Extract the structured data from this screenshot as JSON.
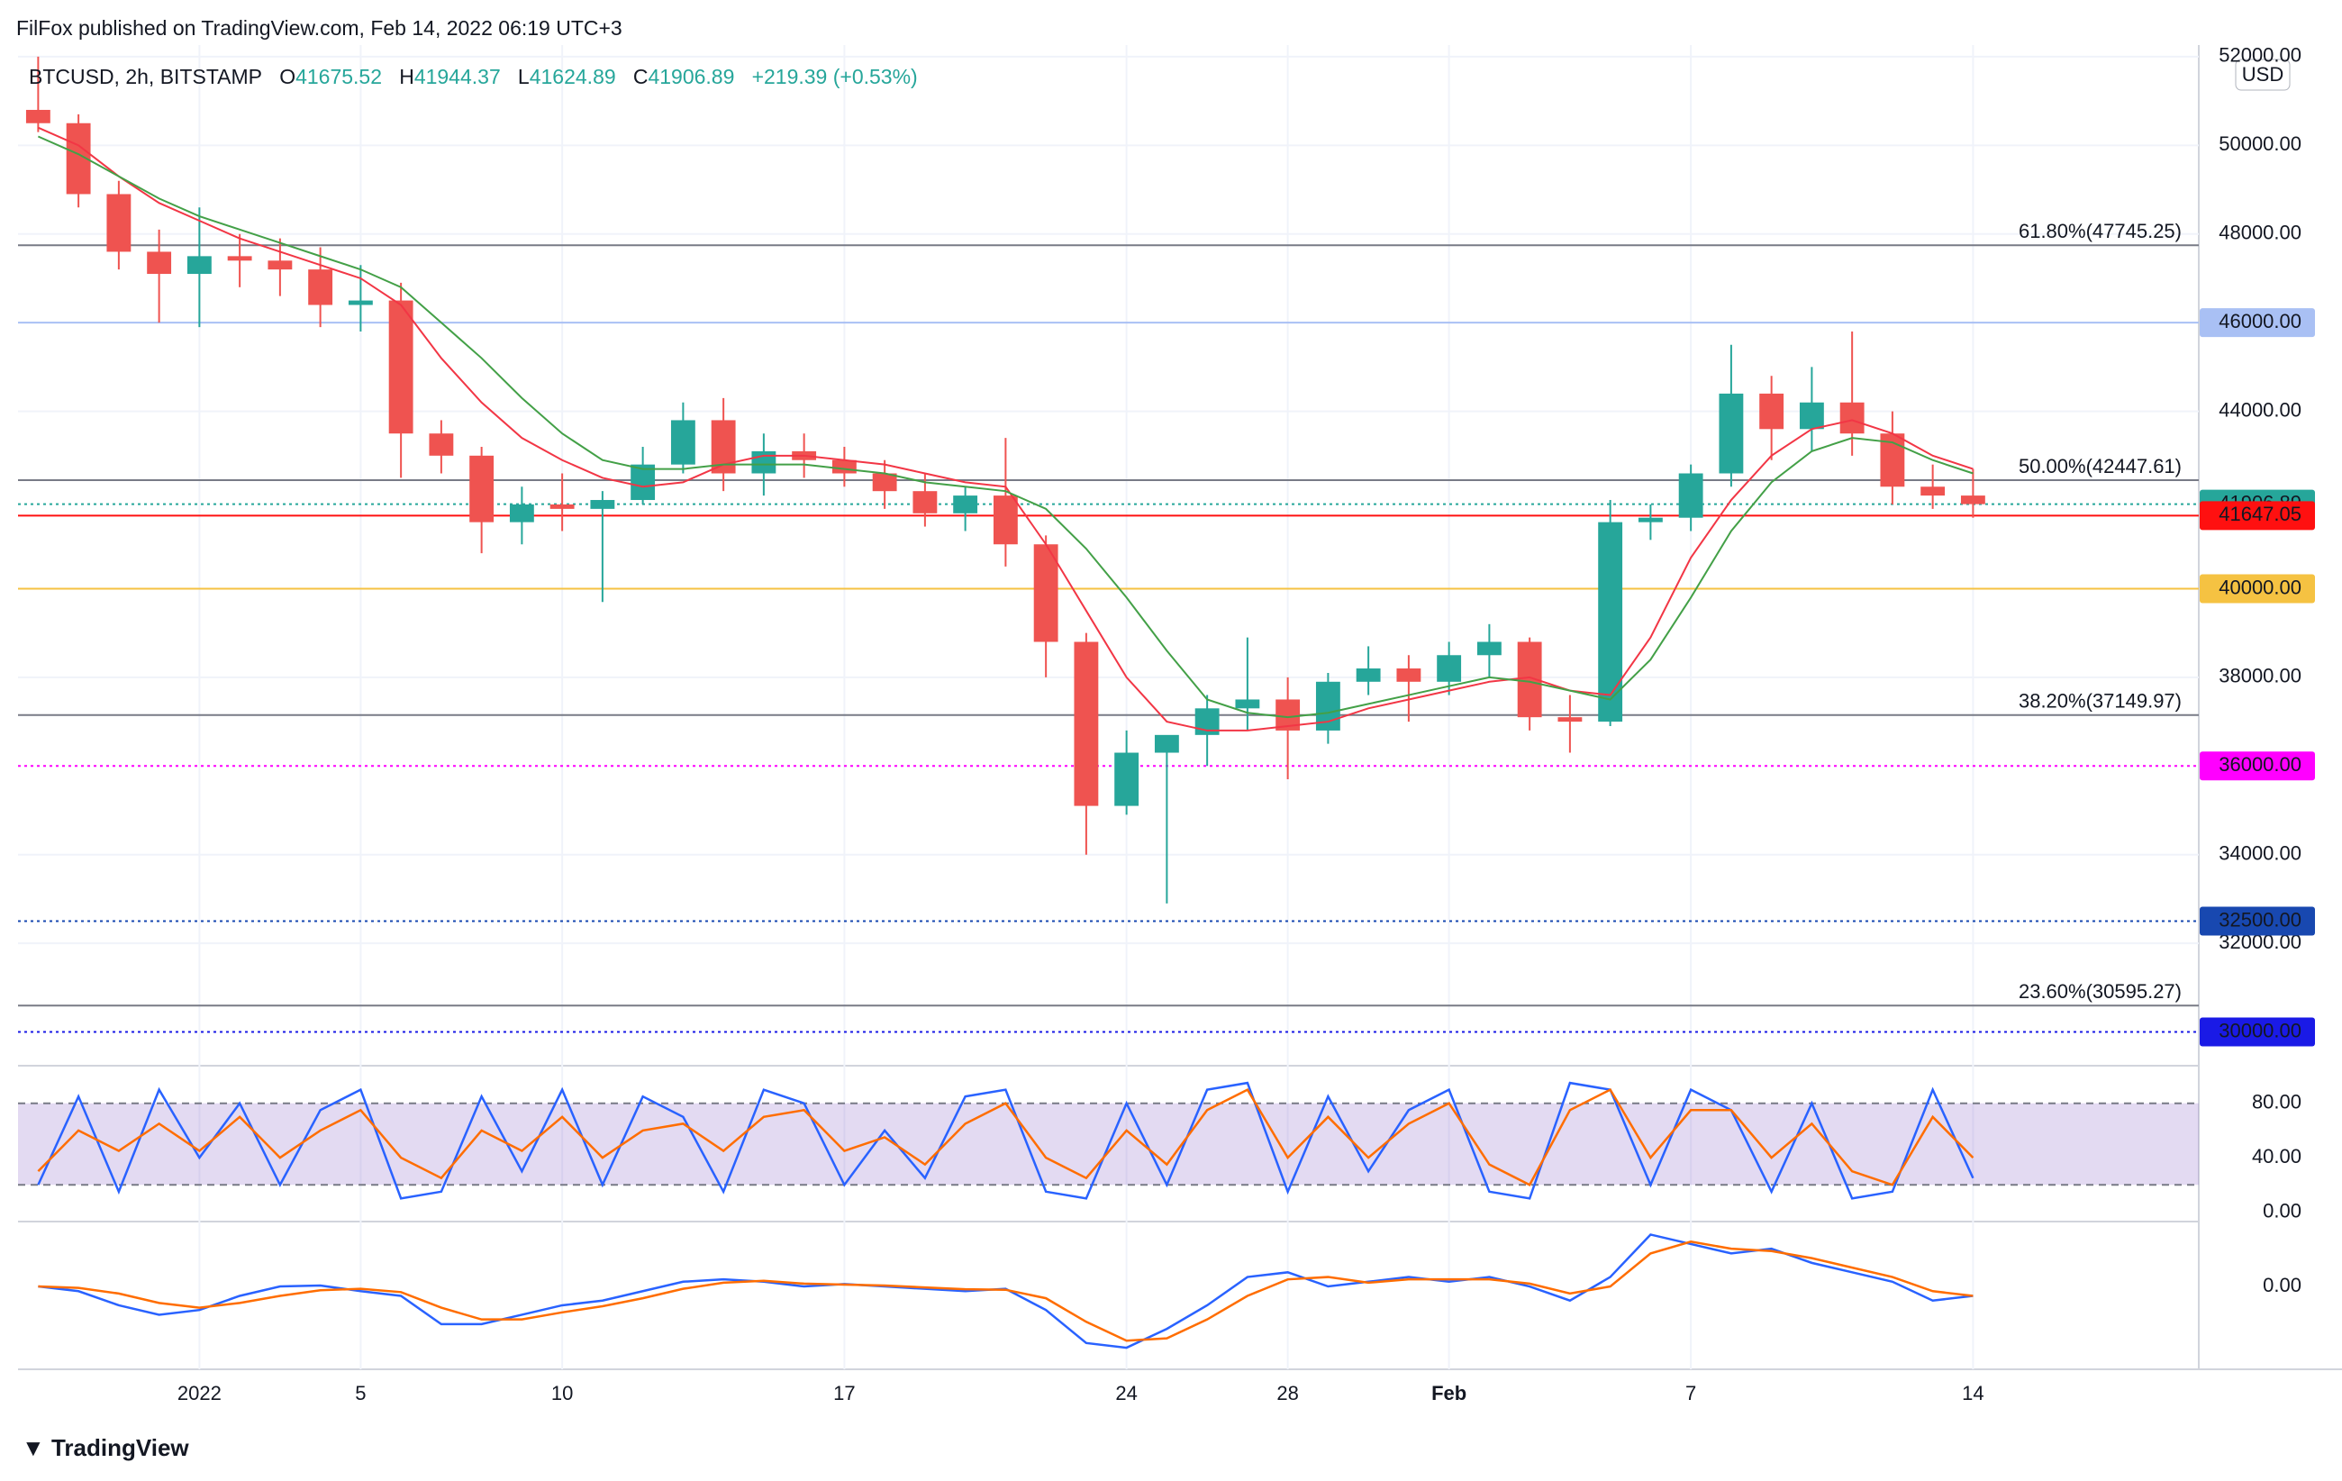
{
  "header": {
    "published": "FilFox published on TradingView.com, Feb 14, 2022 06:19 UTC+3",
    "symbol": "BTCUSD, 2h, BITSTAMP",
    "o": "O",
    "open": "41675.52",
    "h": "H",
    "high": "41944.37",
    "l": "L",
    "low": "41624.89",
    "c": "C",
    "close": "41906.89",
    "change": "+219.39 (+0.53%)",
    "currency": "USD",
    "logo": "TradingView"
  },
  "chart_data": [
    {
      "type": "candlestick",
      "x": [
        -4,
        -3,
        -2,
        -1,
        0,
        1,
        2,
        3,
        4,
        5,
        6,
        7,
        8,
        9,
        10,
        11,
        12,
        13,
        14,
        15,
        16,
        17,
        18,
        19,
        20,
        21,
        22,
        23,
        24,
        25,
        26,
        27,
        28,
        29,
        30,
        31,
        32,
        33,
        34,
        35,
        36,
        37,
        38,
        39,
        40,
        41,
        42,
        43,
        44
      ],
      "open": [
        50800,
        50500,
        48900,
        47600,
        47100,
        47500,
        47400,
        47200,
        46400,
        46500,
        43500,
        43000,
        41500,
        41900,
        41800,
        42000,
        42800,
        43800,
        42600,
        43100,
        42900,
        42600,
        42200,
        41700,
        42100,
        41000,
        38800,
        35100,
        36300,
        36700,
        37300,
        37500,
        36800,
        37900,
        38200,
        37900,
        38500,
        38800,
        37100,
        37000,
        41500,
        41600,
        42600,
        44400,
        43600,
        44200,
        43500,
        42300,
        42100
      ],
      "high": [
        52000,
        50700,
        49200,
        48100,
        48600,
        48000,
        47900,
        47700,
        47300,
        46900,
        43800,
        43200,
        42300,
        42600,
        42200,
        43200,
        44200,
        44300,
        43500,
        43500,
        43200,
        42900,
        42600,
        42300,
        43400,
        41200,
        39000,
        36800,
        36600,
        37600,
        38900,
        38000,
        38100,
        38700,
        38500,
        38800,
        39200,
        38900,
        37600,
        42000,
        41900,
        42800,
        45500,
        44800,
        45000,
        45800,
        44000,
        42800,
        42700
      ],
      "low": [
        50300,
        48600,
        47200,
        46000,
        45900,
        46800,
        46600,
        45900,
        45800,
        42500,
        42600,
        40800,
        41000,
        41300,
        39700,
        41900,
        42600,
        42200,
        42100,
        42500,
        42300,
        41800,
        41400,
        41300,
        40500,
        38000,
        34000,
        34900,
        32900,
        36000,
        36800,
        35700,
        36500,
        37600,
        37000,
        37600,
        38000,
        36800,
        36300,
        36900,
        41100,
        41300,
        42300,
        42900,
        43100,
        43000,
        41900,
        41800,
        41600
      ],
      "close": [
        50500,
        48900,
        47600,
        47100,
        47500,
        47400,
        47200,
        46400,
        46500,
        43500,
        43000,
        41500,
        41900,
        41800,
        42000,
        42800,
        43800,
        42600,
        43100,
        42900,
        42600,
        42200,
        41700,
        42100,
        41000,
        38800,
        35100,
        36300,
        36700,
        37300,
        37500,
        36800,
        37900,
        38200,
        37900,
        38500,
        38800,
        37100,
        37000,
        41500,
        41600,
        42600,
        44400,
        43600,
        44200,
        43500,
        42300,
        42100,
        41906.89
      ],
      "up_color": "#26a69a",
      "down_color": "#ef5350",
      "overlays": [
        {
          "color": "#f23645",
          "values": [
            50400,
            50000,
            49300,
            48700,
            48300,
            47900,
            47600,
            47300,
            47000,
            46400,
            45200,
            44200,
            43400,
            42900,
            42500,
            42300,
            42400,
            42800,
            43000,
            43000,
            42900,
            42800,
            42600,
            42400,
            42300,
            41000,
            39500,
            38000,
            37000,
            36800,
            36800,
            36900,
            37000,
            37300,
            37500,
            37700,
            37900,
            38000,
            37700,
            37600,
            38900,
            40700,
            42000,
            43000,
            43600,
            43800,
            43500,
            43000,
            42700
          ]
        },
        {
          "color": "#43a047",
          "values": [
            50200,
            49800,
            49300,
            48800,
            48400,
            48100,
            47800,
            47500,
            47200,
            46800,
            46000,
            45200,
            44300,
            43500,
            42900,
            42700,
            42700,
            42800,
            42800,
            42800,
            42700,
            42600,
            42400,
            42300,
            42200,
            41800,
            40900,
            39800,
            38600,
            37500,
            37200,
            37100,
            37200,
            37400,
            37600,
            37800,
            38000,
            37900,
            37700,
            37500,
            38400,
            39800,
            41300,
            42400,
            43100,
            43400,
            43300,
            42900,
            42600
          ]
        }
      ],
      "xlim": [
        -4.5,
        49.6
      ],
      "xticks": [
        {
          "value": 0,
          "label": "2022"
        },
        {
          "value": 4,
          "label": "5"
        },
        {
          "value": 9,
          "label": "10"
        },
        {
          "value": 16,
          "label": "17"
        },
        {
          "value": 23,
          "label": "24"
        },
        {
          "value": 27,
          "label": "28"
        },
        {
          "value": 31,
          "label": "Feb"
        },
        {
          "value": 37,
          "label": "7"
        },
        {
          "value": 44,
          "label": "14"
        }
      ],
      "ylim": [
        29300,
        52100
      ],
      "yticks": [
        {
          "value": 32000,
          "label": "32000.00"
        },
        {
          "value": 34000,
          "label": "34000.00"
        },
        {
          "value": 38000,
          "label": "38000.00"
        },
        {
          "value": 44000,
          "label": "44000.00"
        },
        {
          "value": 48000,
          "label": "48000.00"
        },
        {
          "value": 50000,
          "label": "50000.00"
        },
        {
          "value": 52000,
          "label": "52000.00"
        }
      ],
      "grid": true,
      "levels": [
        {
          "value": 46000,
          "label": "46000.00",
          "color": "#a9c0f4",
          "text_color": "#131722",
          "style": "solid"
        },
        {
          "value": 41906.89,
          "label": "41906.89",
          "color": "#26a69a",
          "text_color": "#ffffff",
          "style": "dotted"
        },
        {
          "value": 41647.05,
          "label": "41647.05",
          "color": "#ff1010",
          "text_color": "#ffffff",
          "style": "solid"
        },
        {
          "value": 40000,
          "label": "40000.00",
          "color": "#f5c242",
          "text_color": "#131722",
          "style": "solid"
        },
        {
          "value": 36000,
          "label": "36000.00",
          "color": "#ff00ff",
          "text_color": "#ffffff",
          "style": "dotted"
        },
        {
          "value": 32500,
          "label": "32500.00",
          "color": "#1848b0",
          "text_color": "#ffffff",
          "style": "dotted"
        },
        {
          "value": 30000,
          "label": "30000.00",
          "color": "#1a1ae6",
          "text_color": "#ffffff",
          "style": "dotted"
        }
      ],
      "fib_levels": [
        {
          "value": 47745.25,
          "label": "61.80%(47745.25)"
        },
        {
          "value": 42447.61,
          "label": "50.00%(42447.61)"
        },
        {
          "value": 37149.97,
          "label": "38.20%(37149.97)"
        },
        {
          "value": 30595.27,
          "label": "23.60%(30595.27)"
        }
      ]
    },
    {
      "type": "line",
      "x": [
        -4,
        -3,
        -2,
        -1,
        0,
        1,
        2,
        3,
        4,
        5,
        6,
        7,
        8,
        9,
        10,
        11,
        12,
        13,
        14,
        15,
        16,
        17,
        18,
        19,
        20,
        21,
        22,
        23,
        24,
        25,
        26,
        27,
        28,
        29,
        30,
        31,
        32,
        33,
        34,
        35,
        36,
        37,
        38,
        39,
        40,
        41,
        42,
        43,
        44
      ],
      "series": [
        {
          "color": "#2962ff",
          "values": [
            20,
            85,
            15,
            90,
            40,
            80,
            20,
            75,
            90,
            10,
            15,
            85,
            30,
            90,
            20,
            85,
            70,
            15,
            90,
            80,
            20,
            60,
            25,
            85,
            90,
            15,
            10,
            80,
            20,
            90,
            95,
            15,
            85,
            30,
            75,
            90,
            15,
            10,
            95,
            90,
            20,
            90,
            75,
            15,
            80,
            10,
            15,
            90,
            25
          ]
        },
        {
          "color": "#ff6d00",
          "values": [
            30,
            60,
            45,
            65,
            45,
            70,
            40,
            60,
            75,
            40,
            25,
            60,
            45,
            70,
            40,
            60,
            65,
            45,
            70,
            75,
            45,
            55,
            35,
            65,
            80,
            40,
            25,
            60,
            35,
            75,
            90,
            40,
            70,
            40,
            65,
            80,
            35,
            20,
            75,
            90,
            40,
            75,
            75,
            40,
            65,
            30,
            20,
            70,
            40
          ]
        }
      ],
      "band": [
        20,
        80
      ],
      "band_color": "rgba(126,87,194,0.22)",
      "xlim": [
        -4.5,
        49.6
      ],
      "ylim": [
        -5,
        105
      ],
      "yticks": [
        {
          "value": 0,
          "label": "0.00"
        },
        {
          "value": 40,
          "label": "40.00"
        },
        {
          "value": 80,
          "label": "80.00"
        }
      ]
    },
    {
      "type": "line",
      "x": [
        -4,
        -3,
        -2,
        -1,
        0,
        1,
        2,
        3,
        4,
        5,
        6,
        7,
        8,
        9,
        10,
        11,
        12,
        13,
        14,
        15,
        16,
        17,
        18,
        19,
        20,
        21,
        22,
        23,
        24,
        25,
        26,
        27,
        28,
        29,
        30,
        31,
        32,
        33,
        34,
        35,
        36,
        37,
        38,
        39,
        40,
        41,
        42,
        43,
        44
      ],
      "series": [
        {
          "color": "#2962ff",
          "values": [
            0,
            -100,
            -400,
            -600,
            -500,
            -200,
            0,
            20,
            -100,
            -200,
            -800,
            -800,
            -600,
            -400,
            -300,
            -100,
            100,
            150,
            100,
            0,
            50,
            0,
            -50,
            -100,
            -50,
            -500,
            -1200,
            -1300,
            -900,
            -400,
            200,
            300,
            0,
            100,
            200,
            100,
            200,
            0,
            -300,
            200,
            1100,
            900,
            700,
            800,
            500,
            300,
            100,
            -300,
            -200
          ]
        },
        {
          "color": "#ff6d00",
          "values": [
            0,
            -30,
            -150,
            -350,
            -450,
            -350,
            -200,
            -80,
            -50,
            -120,
            -450,
            -700,
            -700,
            -550,
            -420,
            -250,
            -50,
            80,
            120,
            60,
            40,
            20,
            -20,
            -60,
            -70,
            -250,
            -750,
            -1150,
            -1100,
            -700,
            -200,
            150,
            200,
            80,
            150,
            150,
            150,
            60,
            -150,
            0,
            700,
            950,
            800,
            750,
            600,
            400,
            200,
            -100,
            -200
          ]
        }
      ],
      "xlim": [
        -4.5,
        49.6
      ],
      "ylim": [
        -1700,
        1300
      ],
      "yticks": [
        {
          "value": 0,
          "label": "0.00"
        }
      ]
    }
  ]
}
